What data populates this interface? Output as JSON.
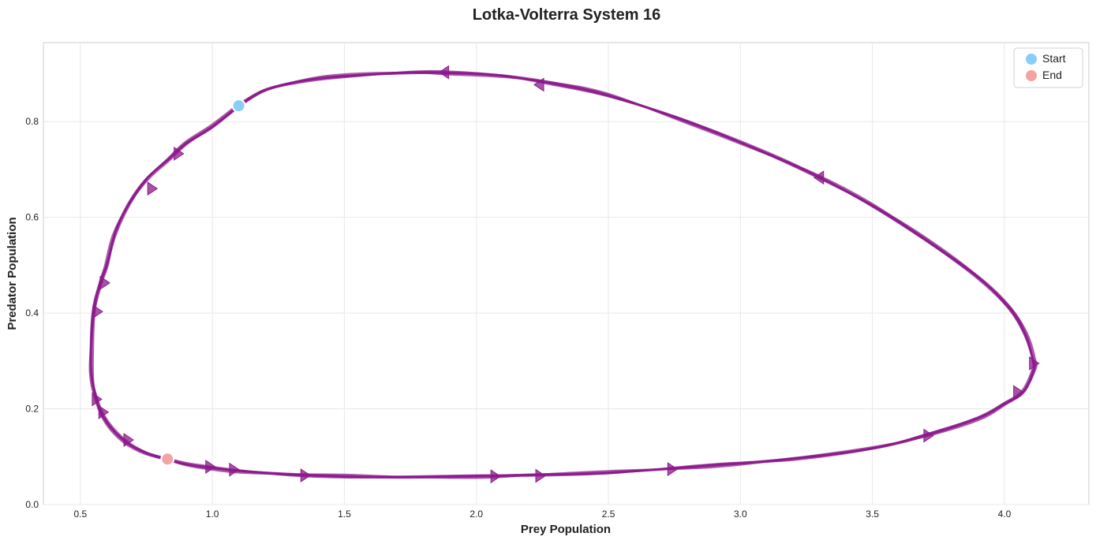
{
  "chart_data": {
    "type": "line",
    "title": "Lotka-Volterra System 16",
    "xlabel": "Prey Population",
    "ylabel": "Predator Population",
    "xlim": [
      0.36,
      4.32
    ],
    "ylim": [
      0.0,
      0.965
    ],
    "xticks": [
      0.5,
      1.0,
      1.5,
      2.0,
      2.5,
      3.0,
      3.5,
      4.0
    ],
    "yticks": [
      0.0,
      0.2,
      0.4,
      0.6,
      0.8
    ],
    "xtick_labels": [
      "0.5",
      "1.0",
      "1.5",
      "2.0",
      "2.5",
      "3.0",
      "3.5",
      "4.0"
    ],
    "ytick_labels": [
      "0.0",
      "0.2",
      "0.4",
      "0.6",
      "0.8"
    ],
    "grid": true,
    "legend_position": "top-right",
    "trajectory_color": "#8b1a8b",
    "series": [
      {
        "x": [
          1.1,
          1.2,
          1.35,
          1.5,
          1.75,
          1.9,
          2.1,
          2.3,
          2.5,
          2.8,
          3.1,
          3.3,
          3.5,
          3.7,
          3.9,
          4.02,
          4.08,
          4.11,
          4.11,
          4.07,
          4.0,
          3.9,
          3.7,
          3.5,
          3.2,
          2.9,
          2.5,
          2.2,
          2.0,
          1.7,
          1.5,
          1.3,
          1.1,
          0.98,
          0.9,
          0.83,
          0.75,
          0.68,
          0.62,
          0.58,
          0.56,
          0.545,
          0.54,
          0.55,
          0.575,
          0.6,
          0.63,
          0.68,
          0.75,
          0.83,
          0.9,
          1.0,
          1.1
        ],
        "y": [
          0.833,
          0.865,
          0.885,
          0.895,
          0.903,
          0.902,
          0.895,
          0.878,
          0.855,
          0.8,
          0.733,
          0.683,
          0.625,
          0.555,
          0.475,
          0.41,
          0.355,
          0.3,
          0.28,
          0.235,
          0.21,
          0.18,
          0.145,
          0.118,
          0.095,
          0.082,
          0.067,
          0.061,
          0.059,
          0.058,
          0.059,
          0.062,
          0.07,
          0.078,
          0.085,
          0.095,
          0.108,
          0.128,
          0.158,
          0.19,
          0.22,
          0.255,
          0.3,
          0.4,
          0.46,
          0.5,
          0.565,
          0.625,
          0.68,
          0.72,
          0.755,
          0.79,
          0.833
        ]
      }
    ],
    "direction_markers": [
      {
        "x": 1.88,
        "y": 0.903,
        "dir": "left"
      },
      {
        "x": 2.24,
        "y": 0.877,
        "dir": "left"
      },
      {
        "x": 3.3,
        "y": 0.683,
        "dir": "left"
      },
      {
        "x": 4.11,
        "y": 0.295,
        "dir": "right"
      },
      {
        "x": 4.05,
        "y": 0.235,
        "dir": "right"
      },
      {
        "x": 3.71,
        "y": 0.144,
        "dir": "right"
      },
      {
        "x": 2.74,
        "y": 0.074,
        "dir": "right"
      },
      {
        "x": 2.24,
        "y": 0.06,
        "dir": "right"
      },
      {
        "x": 2.07,
        "y": 0.059,
        "dir": "right"
      },
      {
        "x": 1.35,
        "y": 0.061,
        "dir": "right"
      },
      {
        "x": 1.08,
        "y": 0.073,
        "dir": "right"
      },
      {
        "x": 0.99,
        "y": 0.079,
        "dir": "right"
      },
      {
        "x": 0.68,
        "y": 0.135,
        "dir": "right"
      },
      {
        "x": 0.585,
        "y": 0.193,
        "dir": "right"
      },
      {
        "x": 0.56,
        "y": 0.22,
        "dir": "right"
      },
      {
        "x": 0.563,
        "y": 0.403,
        "dir": "right"
      },
      {
        "x": 0.59,
        "y": 0.463,
        "dir": "right"
      },
      {
        "x": 0.77,
        "y": 0.66,
        "dir": "right"
      },
      {
        "x": 0.87,
        "y": 0.733,
        "dir": "right"
      }
    ],
    "start_point": {
      "label": "Start",
      "x": 1.1,
      "y": 0.833,
      "color": "#87cefa"
    },
    "end_point": {
      "label": "End",
      "x": 0.83,
      "y": 0.095,
      "color": "#f4a3a3"
    }
  }
}
